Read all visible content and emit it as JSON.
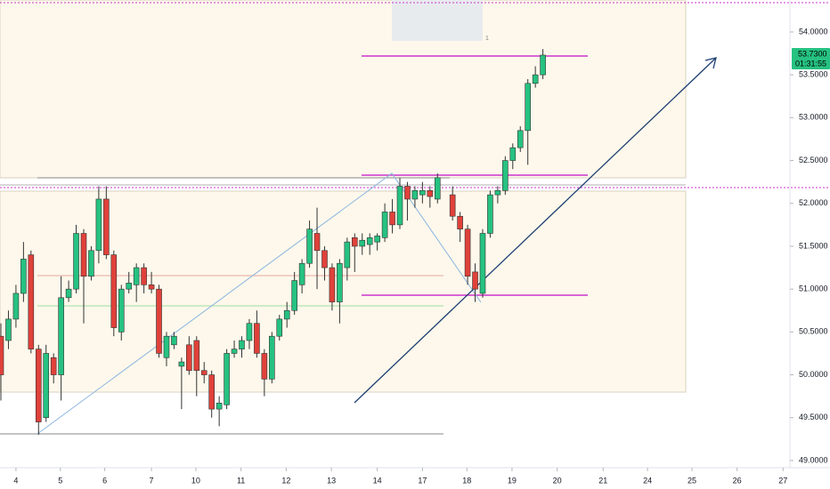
{
  "chart_data": {
    "type": "candlestick",
    "x": [
      0,
      1,
      2,
      3,
      4,
      5,
      6,
      7,
      8,
      9,
      10,
      11,
      12,
      13,
      14,
      15,
      16,
      17,
      18,
      19,
      20,
      21,
      22,
      23,
      24,
      25,
      26,
      27,
      28,
      29,
      30,
      31,
      32,
      33,
      34,
      35,
      36,
      37,
      38,
      39,
      40,
      41,
      42,
      43,
      44,
      45,
      46,
      47,
      48,
      49,
      50,
      51,
      52,
      53,
      54,
      55,
      56,
      57,
      58,
      60,
      61,
      62,
      63,
      64,
      65,
      66,
      67,
      68,
      69,
      70,
      71,
      72
    ],
    "open": [
      50.45,
      50.4,
      50.65,
      50.95,
      51.4,
      50.3,
      49.5,
      50.2,
      50.0,
      50.9,
      51.0,
      51.65,
      51.15,
      51.45,
      52.05,
      51.4,
      50.5,
      51.0,
      51.05,
      51.25,
      51.05,
      51.0,
      50.2,
      50.35,
      50.1,
      50.35,
      50.4,
      50.05,
      50.0,
      49.6,
      49.65,
      50.25,
      50.3,
      50.4,
      50.6,
      50.25,
      49.95,
      50.45,
      50.65,
      50.75,
      51.05,
      51.3,
      51.65,
      51.45,
      51.25,
      50.85,
      51.25,
      51.6,
      51.5,
      51.52,
      51.55,
      51.6,
      51.9,
      51.75,
      52.2,
      52.05,
      52.1,
      52.15,
      52.05,
      52.1,
      51.85,
      51.7,
      51.2,
      50.95,
      51.65,
      52.1,
      52.15,
      52.5,
      52.65,
      52.85,
      53.4,
      53.5
    ],
    "high": [
      50.6,
      50.75,
      51.05,
      51.55,
      51.45,
      50.35,
      50.35,
      50.25,
      51.15,
      51.1,
      51.75,
      51.7,
      51.5,
      52.2,
      52.2,
      51.45,
      51.05,
      51.2,
      51.3,
      51.3,
      51.2,
      51.05,
      50.5,
      50.5,
      50.2,
      50.45,
      50.45,
      50.15,
      50.05,
      49.75,
      50.3,
      50.4,
      50.45,
      50.65,
      50.75,
      50.3,
      50.5,
      50.7,
      50.85,
      51.2,
      51.35,
      51.8,
      51.95,
      51.5,
      51.3,
      51.35,
      51.6,
      51.65,
      51.65,
      51.65,
      51.65,
      52.0,
      52.05,
      52.3,
      52.25,
      52.2,
      52.25,
      52.2,
      52.35,
      52.2,
      51.9,
      51.75,
      51.3,
      51.7,
      52.15,
      52.2,
      52.55,
      52.7,
      52.9,
      53.45,
      53.6,
      53.8
    ],
    "low": [
      49.7,
      50.3,
      50.55,
      50.85,
      50.25,
      49.3,
      49.45,
      49.9,
      49.7,
      50.85,
      50.95,
      50.6,
      51.1,
      51.3,
      51.35,
      50.45,
      50.4,
      50.95,
      50.85,
      50.95,
      50.95,
      50.2,
      50.1,
      50.3,
      49.6,
      50.0,
      49.75,
      49.9,
      49.5,
      49.4,
      49.6,
      50.2,
      50.2,
      50.3,
      50.2,
      49.75,
      49.9,
      50.4,
      50.55,
      50.7,
      50.95,
      51.25,
      51.0,
      51.1,
      50.75,
      50.6,
      51.1,
      51.2,
      51.4,
      51.4,
      51.45,
      51.55,
      51.65,
      51.7,
      51.8,
      51.95,
      52.0,
      51.95,
      52.0,
      51.8,
      51.55,
      51.05,
      50.85,
      50.9,
      51.6,
      52.0,
      52.1,
      52.4,
      52.6,
      52.45,
      53.35,
      53.45
    ],
    "close": [
      50.0,
      50.65,
      50.95,
      51.35,
      50.3,
      49.45,
      50.25,
      50.0,
      50.9,
      51.0,
      51.65,
      51.15,
      51.45,
      52.05,
      51.4,
      50.55,
      51.0,
      51.07,
      51.25,
      51.05,
      51.0,
      50.25,
      50.45,
      50.45,
      50.15,
      50.05,
      50.05,
      50.0,
      49.6,
      49.67,
      50.25,
      50.3,
      50.4,
      50.6,
      50.25,
      49.95,
      50.45,
      50.65,
      50.75,
      51.1,
      51.3,
      51.7,
      51.45,
      51.25,
      50.85,
      51.3,
      51.55,
      51.5,
      51.57,
      51.6,
      51.62,
      51.9,
      51.75,
      52.2,
      52.05,
      52.15,
      52.15,
      52.08,
      52.3,
      51.85,
      51.7,
      51.15,
      51.0,
      51.65,
      52.1,
      52.15,
      52.5,
      52.65,
      52.85,
      53.4,
      53.5,
      53.73
    ],
    "up_color": "#26c281",
    "down_color": "#e0413a",
    "xlim": [
      -0.12,
      104.7
    ],
    "ylim": [
      48.927,
      54.373
    ],
    "xticks": [
      {
        "value": 2.0,
        "label": "4"
      },
      {
        "value": 7.9,
        "label": "5"
      },
      {
        "value": 13.8,
        "label": "6"
      },
      {
        "value": 20.0,
        "label": "7"
      },
      {
        "value": 25.9,
        "label": "10"
      },
      {
        "value": 31.9,
        "label": "11"
      },
      {
        "value": 37.9,
        "label": "12"
      },
      {
        "value": 43.9,
        "label": "13"
      },
      {
        "value": 50.0,
        "label": "14"
      },
      {
        "value": 56.0,
        "label": "17"
      },
      {
        "value": 61.9,
        "label": "18"
      },
      {
        "value": 67.9,
        "label": "19"
      },
      {
        "value": 73.9,
        "label": "20"
      },
      {
        "value": 80.0,
        "label": "21"
      },
      {
        "value": 85.9,
        "label": "24"
      },
      {
        "value": 91.8,
        "label": "25"
      },
      {
        "value": 97.8,
        "label": "26"
      },
      {
        "value": 103.9,
        "label": "27"
      }
    ],
    "yticks": [
      {
        "value": 49.0,
        "label": "49.0000"
      },
      {
        "value": 49.5,
        "label": "49.5000"
      },
      {
        "value": 50.0,
        "label": "50.0000"
      },
      {
        "value": 50.5,
        "label": "50.5000"
      },
      {
        "value": 51.0,
        "label": "51.0000"
      },
      {
        "value": 51.5,
        "label": "51.5000"
      },
      {
        "value": 52.0,
        "label": "52.0000"
      },
      {
        "value": 52.5,
        "label": "52.5000"
      },
      {
        "value": 53.0,
        "label": "53.0000"
      },
      {
        "value": 53.5,
        "label": "53.5000"
      },
      {
        "value": 54.0,
        "label": "54.0000"
      }
    ],
    "price_label": "53.7300",
    "timer": "01:31:55",
    "marker_text": "1"
  }
}
